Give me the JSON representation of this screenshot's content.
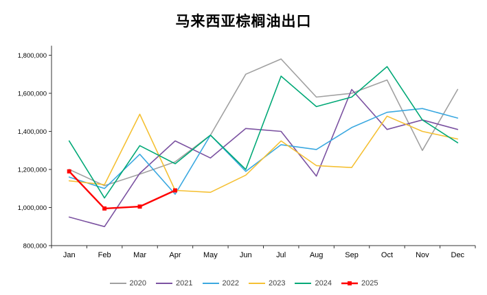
{
  "title": "马来西亚棕榈油出口",
  "chart_data": {
    "type": "line",
    "title": "马来西亚棕榈油出口",
    "categories": [
      "Jan",
      "Feb",
      "Mar",
      "Apr",
      "May",
      "Jun",
      "Jul",
      "Aug",
      "Sep",
      "Oct",
      "Nov",
      "Dec"
    ],
    "series": [
      {
        "name": "2020",
        "color": "#a0a0a0",
        "values": [
          1200000,
          1115000,
          1175000,
          1240000,
          1380000,
          1700000,
          1780000,
          1580000,
          1600000,
          1670000,
          1300000,
          1620000
        ]
      },
      {
        "name": "2021",
        "color": "#7b52a1",
        "values": [
          950000,
          900000,
          1180000,
          1350000,
          1260000,
          1415000,
          1400000,
          1165000,
          1620000,
          1410000,
          1460000,
          1410000
        ]
      },
      {
        "name": "2022",
        "color": "#3aa8e0",
        "values": [
          1160000,
          1100000,
          1280000,
          1070000,
          1380000,
          1190000,
          1330000,
          1305000,
          1420000,
          1500000,
          1520000,
          1470000
        ]
      },
      {
        "name": "2023",
        "color": "#f5c033",
        "values": [
          1140000,
          1120000,
          1490000,
          1090000,
          1080000,
          1170000,
          1350000,
          1220000,
          1210000,
          1480000,
          1400000,
          1360000
        ]
      },
      {
        "name": "2024",
        "color": "#00a876",
        "values": [
          1350000,
          1050000,
          1325000,
          1230000,
          1380000,
          1200000,
          1690000,
          1530000,
          1580000,
          1740000,
          1460000,
          1340000
        ]
      },
      {
        "name": "2025",
        "color": "#ff0000",
        "marker": "square",
        "width": 2.4,
        "values": [
          1190000,
          995000,
          1005000,
          1090000,
          null,
          null,
          null,
          null,
          null,
          null,
          null,
          null
        ]
      }
    ],
    "xlabel": "",
    "ylabel": "",
    "ylim": [
      800000,
      1850000
    ],
    "yticks": [
      800000,
      1000000,
      1200000,
      1400000,
      1600000,
      1800000
    ],
    "legend_position": "bottom",
    "grid": false
  }
}
